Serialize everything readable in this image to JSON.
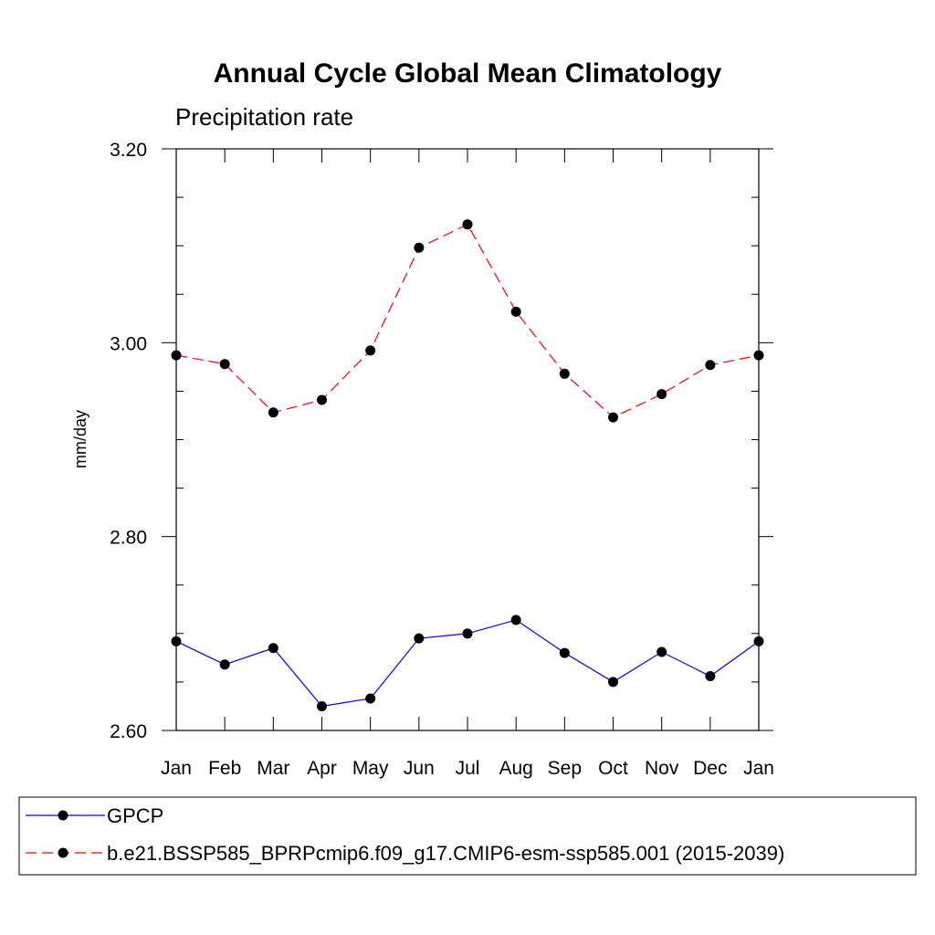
{
  "chart_data": {
    "type": "line",
    "title": "Annual Cycle Global Mean Climatology",
    "subtitle": "Precipitation rate",
    "xlabel": "",
    "ylabel": "mm/day",
    "categories": [
      "Jan",
      "Feb",
      "Mar",
      "Apr",
      "May",
      "Jun",
      "Jul",
      "Aug",
      "Sep",
      "Oct",
      "Nov",
      "Dec",
      "Jan"
    ],
    "ylim": [
      2.6,
      3.2
    ],
    "yticks": [
      "2.60",
      "2.80",
      "3.00",
      "3.20"
    ],
    "series": [
      {
        "name": "GPCP",
        "color": "#0000ff",
        "dash": "solid",
        "values": [
          2.692,
          2.668,
          2.685,
          2.625,
          2.633,
          2.695,
          2.7,
          2.714,
          2.68,
          2.65,
          2.681,
          2.656,
          2.692
        ]
      },
      {
        "name": "b.e21.BSSP585_BPRPcmip6.f09_g17.CMIP6-esm-ssp585.001 (2015-2039)",
        "color": "#ff0000",
        "dash": "dashed",
        "values": [
          2.987,
          2.978,
          2.928,
          2.941,
          2.992,
          3.098,
          3.122,
          3.032,
          2.968,
          2.923,
          2.947,
          2.977,
          2.987
        ]
      }
    ],
    "grid": false,
    "legend_position": "bottom"
  }
}
